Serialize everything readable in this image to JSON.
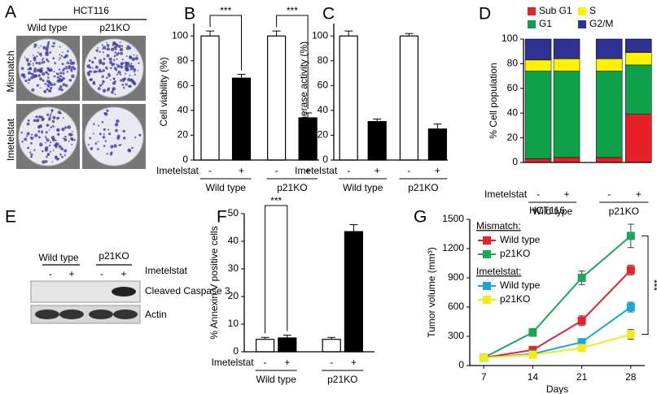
{
  "panel_labels": [
    "A",
    "B",
    "C",
    "D",
    "E",
    "F",
    "G"
  ],
  "panel_a": {
    "title": "HCT116",
    "columns": [
      "Wild type",
      "p21KO"
    ],
    "rows": [
      "Mismatch",
      "Imetelstat"
    ]
  },
  "panel_e": {
    "groups": [
      "Wild type",
      "p21KO"
    ],
    "lanes": [
      "-",
      "+",
      "-",
      "+"
    ],
    "treatment": "Imetelstat",
    "bands": [
      "Cleaved Caspase 3",
      "Actin"
    ]
  },
  "chart_data": [
    {
      "type": "bar",
      "ylabel": "Cell viability (%)",
      "categories": [
        "-",
        "+",
        "-",
        "+"
      ],
      "groups": [
        "Wild type",
        "p21KO"
      ],
      "treatment_label": "Imetelstat",
      "values": [
        100,
        66,
        100,
        34
      ],
      "errors": [
        4,
        3,
        4,
        4
      ],
      "colors": [
        "#ffffff",
        "#000000",
        "#ffffff",
        "#000000"
      ],
      "ylim": [
        0,
        110
      ],
      "yticks": [
        0,
        20,
        40,
        60,
        80,
        100
      ],
      "annotations": [
        "***",
        "***"
      ]
    },
    {
      "type": "bar",
      "ylabel": "Telomerase activity (%)",
      "categories": [
        "-",
        "+",
        "-",
        "+"
      ],
      "groups": [
        "Wild type",
        "p21KO"
      ],
      "treatment_label": "Imetelstat",
      "values": [
        100,
        31,
        100,
        25
      ],
      "errors": [
        4,
        2,
        2,
        4
      ],
      "colors": [
        "#ffffff",
        "#000000",
        "#ffffff",
        "#000000"
      ],
      "ylim": [
        0,
        110
      ],
      "yticks": [
        0,
        20,
        40,
        60,
        80,
        100
      ]
    },
    {
      "type": "stacked-bar",
      "ylabel": "% Cell population",
      "categories": [
        "-",
        "+",
        "-",
        "+"
      ],
      "groups": [
        "Wild type",
        "p21KO"
      ],
      "treatment_label": "Imetelstat",
      "series": [
        {
          "name": "Sub G1",
          "color": "#e8202a",
          "values": [
            3,
            4,
            4,
            39
          ]
        },
        {
          "name": "G1",
          "color": "#0fa04a",
          "values": [
            71,
            70,
            70,
            40
          ]
        },
        {
          "name": "S",
          "color": "#fff200",
          "values": [
            9,
            10,
            10,
            10
          ]
        },
        {
          "name": "G2/M",
          "color": "#2e3192",
          "values": [
            17,
            16,
            16,
            11
          ]
        }
      ],
      "ylim": [
        0,
        100
      ],
      "yticks": [
        0,
        20,
        40,
        60,
        80,
        100
      ]
    },
    {
      "type": "bar",
      "ylabel": "% Annexin V positive cells",
      "categories": [
        "-",
        "+",
        "-",
        "+"
      ],
      "groups": [
        "Wild type",
        "p21KO"
      ],
      "treatment_label": "Imetelstat",
      "values": [
        4.5,
        5,
        4.5,
        43.5
      ],
      "errors": [
        0.7,
        1,
        0.7,
        2.5
      ],
      "colors": [
        "#ffffff",
        "#000000",
        "#ffffff",
        "#000000"
      ],
      "ylim": [
        0,
        50
      ],
      "yticks": [
        0,
        10,
        20,
        30,
        40,
        50
      ],
      "annotations": [
        "***"
      ]
    },
    {
      "type": "line",
      "title": "HCT116",
      "xlabel": "Days",
      "ylabel": "Tumor volume (mm³)",
      "x": [
        7,
        14,
        21,
        28
      ],
      "xlim": [
        5,
        30
      ],
      "xticks": [
        7,
        14,
        21,
        28
      ],
      "ylim": [
        0,
        1500
      ],
      "yticks": [
        0,
        300,
        600,
        900,
        1200,
        1500
      ],
      "legend_groups": [
        "Mismatch:",
        "Imetelstat:"
      ],
      "series": [
        {
          "name": "Wild type",
          "color": "#e8202a",
          "values": [
            80,
            160,
            460,
            980
          ],
          "errors": [
            15,
            30,
            50,
            50
          ]
        },
        {
          "name": "p21KO",
          "color": "#1fa55a",
          "values": [
            80,
            340,
            900,
            1330
          ],
          "errors": [
            15,
            40,
            70,
            120
          ]
        },
        {
          "name": "Wild type",
          "color": "#1aa7e0",
          "values": [
            80,
            120,
            240,
            600
          ],
          "errors": [
            15,
            20,
            30,
            50
          ]
        },
        {
          "name": "p21KO",
          "color": "#f2ea1a",
          "values": [
            80,
            110,
            180,
            320
          ],
          "errors": [
            15,
            20,
            30,
            50
          ]
        }
      ],
      "annotations": [
        "***"
      ]
    }
  ]
}
